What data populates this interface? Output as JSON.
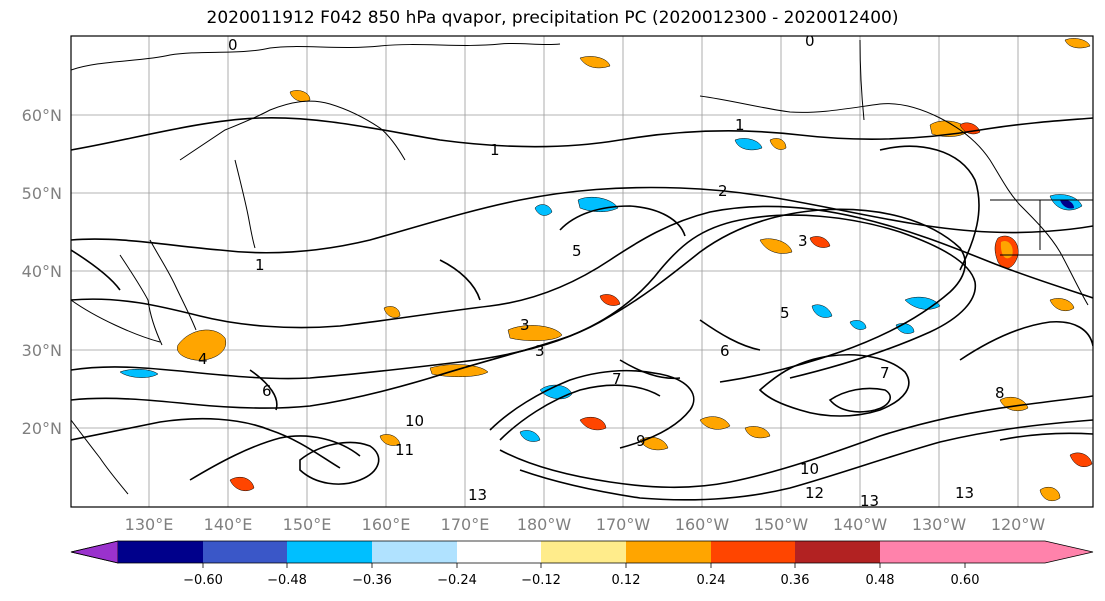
{
  "title": "2020011912 F042 850 hPa qvapor, precipitation PC (2020012300 - 2020012400)",
  "map": {
    "lat_labels": [
      "60°N",
      "50°N",
      "40°N",
      "30°N",
      "20°N"
    ],
    "lon_labels": [
      "130°E",
      "140°E",
      "150°E",
      "160°E",
      "170°E",
      "180°W",
      "170°W",
      "160°W",
      "150°W",
      "140°W",
      "130°W",
      "120°W"
    ],
    "contour_labels": [
      "0",
      "0",
      "1",
      "1",
      "1",
      "2",
      "3",
      "3",
      "3",
      "4",
      "5",
      "5",
      "6",
      "6",
      "7",
      "7",
      "8",
      "9",
      "10",
      "10",
      "11",
      "12",
      "13",
      "13",
      "13"
    ]
  },
  "colorbar": {
    "ticks": [
      "−0.60",
      "−0.48",
      "−0.36",
      "−0.24",
      "−0.12",
      "0.12",
      "0.24",
      "0.36",
      "0.48",
      "0.60"
    ],
    "colors": [
      "#9a32cd",
      "#00008b",
      "#3a57c8",
      "#00bfff",
      "#b0e2ff",
      "#ffffff",
      "#ffec8b",
      "#ffa500",
      "#ff4500",
      "#b22222",
      "#ff82ab"
    ]
  }
}
